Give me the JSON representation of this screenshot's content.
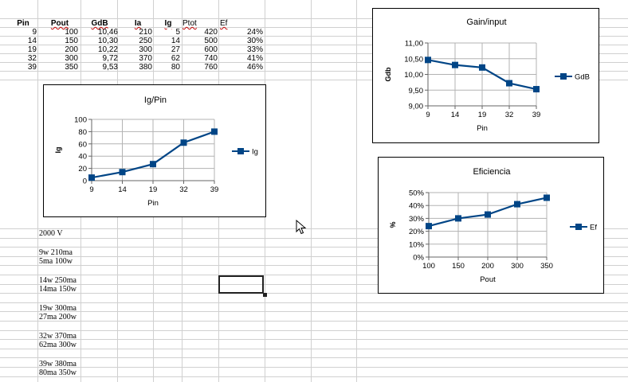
{
  "table": {
    "headers": [
      "Pin",
      "Pout",
      "GdB",
      "Ia",
      "Ig",
      "Ptot",
      "Ef"
    ],
    "rows": [
      [
        "9",
        "100",
        "10,46",
        "210",
        "5",
        "420",
        "24%"
      ],
      [
        "14",
        "150",
        "10,30",
        "250",
        "14",
        "500",
        "30%"
      ],
      [
        "19",
        "200",
        "10,22",
        "300",
        "27",
        "600",
        "33%"
      ],
      [
        "32",
        "300",
        "9,72",
        "370",
        "62",
        "740",
        "41%"
      ],
      [
        "39",
        "350",
        "9,53",
        "380",
        "80",
        "760",
        "46%"
      ]
    ]
  },
  "notes": {
    "voltage": "2000 V",
    "n1a": "9w 210ma",
    "n1b": "5ma 100w",
    "n2a": "14w 250ma",
    "n2b": "14ma 150w",
    "n3a": "19w 300ma",
    "n3b": "27ma 200w",
    "n4a": "32w 370ma",
    "n4b": "62ma 300w",
    "n5a": "39w 380ma",
    "n5b": "80ma 350w"
  },
  "colors": {
    "series": "#004586",
    "grid": "#b3b3b3",
    "sheet_grid": "#d0d0d0"
  },
  "chart_data": [
    {
      "id": "ig",
      "type": "line",
      "title": "Ig/Pin",
      "xlabel": "Pin",
      "ylabel": "Ig",
      "categories": [
        "9",
        "14",
        "19",
        "32",
        "39"
      ],
      "series": [
        {
          "name": "Ig",
          "values": [
            5,
            14,
            27,
            62,
            80
          ]
        }
      ],
      "ylim": [
        0,
        100
      ],
      "yticks": [
        "0",
        "20",
        "40",
        "60",
        "80",
        "100"
      ],
      "yticks_values": [
        0,
        20,
        40,
        60,
        80,
        100
      ],
      "grid": true,
      "legend": "right"
    },
    {
      "id": "gain",
      "type": "line",
      "title": "Gain/input",
      "xlabel": "Pin",
      "ylabel": "Gdb",
      "categories": [
        "9",
        "14",
        "19",
        "32",
        "39"
      ],
      "series": [
        {
          "name": "GdB",
          "values": [
            10.46,
            10.3,
            10.22,
            9.72,
            9.53
          ]
        }
      ],
      "ylim": [
        9,
        11
      ],
      "yticks": [
        "9,00",
        "9,50",
        "10,00",
        "10,50",
        "11,00"
      ],
      "yticks_values": [
        9,
        9.5,
        10,
        10.5,
        11
      ],
      "grid": true,
      "legend": "right"
    },
    {
      "id": "ef",
      "type": "line",
      "title": "Eficiencia",
      "xlabel": "Pout",
      "ylabel": "%",
      "categories": [
        "100",
        "150",
        "200",
        "300",
        "350"
      ],
      "series": [
        {
          "name": "Ef",
          "values": [
            0.24,
            0.3,
            0.33,
            0.41,
            0.46
          ]
        }
      ],
      "ylim": [
        0,
        0.5
      ],
      "yticks": [
        "0%",
        "10%",
        "20%",
        "30%",
        "40%",
        "50%"
      ],
      "yticks_values": [
        0,
        0.1,
        0.2,
        0.3,
        0.4,
        0.5
      ],
      "grid": true,
      "legend": "right"
    }
  ]
}
